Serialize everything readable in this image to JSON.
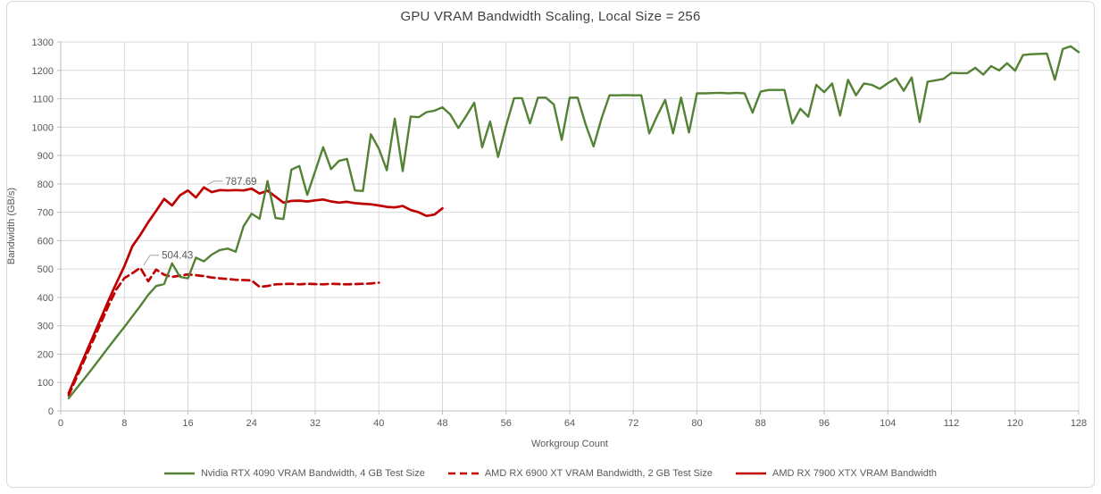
{
  "chart_data": {
    "type": "line",
    "title": "GPU VRAM Bandwidth Scaling, Local Size = 256",
    "xlabel": "Workgroup Count",
    "ylabel": "Bandwidth (GB/s)",
    "xlim": [
      0,
      128
    ],
    "ylim": [
      0,
      1300
    ],
    "x_ticks": [
      0,
      8,
      16,
      24,
      32,
      40,
      48,
      56,
      64,
      72,
      80,
      88,
      96,
      104,
      112,
      120,
      128
    ],
    "y_ticks": [
      0,
      100,
      200,
      300,
      400,
      500,
      600,
      700,
      800,
      900,
      1000,
      1100,
      1200,
      1300
    ],
    "grid": true,
    "legend_position": "bottom",
    "colors": {
      "grid": "#d9d9d9",
      "axis": "#bfbfbf",
      "tick_label": "#595959",
      "title": "#404040",
      "annotation": "#595959",
      "leader_line": "#a6a6a6",
      "nvidia_green": "#548235",
      "amd_red": "#c00000"
    },
    "series": [
      {
        "name": "Nvidia RTX 4090 VRAM Bandwidth, 4 GB Test Size",
        "color": "#548235",
        "style": "solid",
        "x": [
          1,
          2,
          3,
          4,
          5,
          6,
          7,
          8,
          9,
          10,
          11,
          12,
          13,
          14,
          15,
          16,
          17,
          18,
          19,
          20,
          21,
          22,
          23,
          24,
          25,
          26,
          27,
          28,
          29,
          30,
          31,
          32,
          33,
          34,
          35,
          36,
          37,
          38,
          39,
          40,
          41,
          42,
          43,
          44,
          45,
          46,
          47,
          48,
          49,
          50,
          51,
          52,
          53,
          54,
          55,
          56,
          57,
          58,
          59,
          60,
          61,
          62,
          63,
          64,
          65,
          66,
          67,
          68,
          69,
          70,
          71,
          72,
          73,
          74,
          75,
          76,
          77,
          78,
          79,
          80,
          81,
          82,
          83,
          84,
          85,
          86,
          87,
          88,
          89,
          90,
          91,
          92,
          93,
          94,
          95,
          96,
          97,
          98,
          99,
          100,
          101,
          102,
          103,
          104,
          105,
          106,
          107,
          108,
          109,
          110,
          111,
          112,
          113,
          114,
          115,
          116,
          117,
          118,
          119,
          120,
          121,
          122,
          123,
          124,
          125,
          126,
          127,
          128
        ],
        "values": [
          45,
          80,
          115,
          150,
          187,
          224,
          260,
          296,
          333,
          370,
          409,
          440,
          447,
          520,
          472,
          467,
          540,
          527,
          551,
          567,
          572,
          561,
          651,
          695,
          677,
          810,
          680,
          676,
          850,
          863,
          761,
          845,
          929,
          852,
          881,
          888,
          777,
          775,
          975,
          924,
          848,
          1030,
          845,
          1037,
          1035,
          1053,
          1058,
          1070,
          1044,
          997,
          1040,
          1086,
          929,
          1020,
          895,
          1005,
          1102,
          1102,
          1013,
          1104,
          1104,
          1080,
          955,
          1104,
          1104,
          1010,
          932,
          1030,
          1112,
          1112,
          1113,
          1112,
          1112,
          978,
          1040,
          1096,
          978,
          1104,
          981,
          1119,
          1119,
          1120,
          1121,
          1119,
          1121,
          1119,
          1051,
          1125,
          1131,
          1131,
          1131,
          1013,
          1065,
          1037,
          1149,
          1123,
          1154,
          1041,
          1167,
          1112,
          1154,
          1149,
          1135,
          1155,
          1172,
          1128,
          1175,
          1018,
          1160,
          1165,
          1170,
          1191,
          1190,
          1190,
          1209,
          1185,
          1215,
          1200,
          1225,
          1199,
          1254,
          1257,
          1258,
          1259,
          1167,
          1275,
          1285,
          1264
        ]
      },
      {
        "name": "AMD RX 6900 XT VRAM Bandwidth, 2 GB Test Size",
        "color": "#c00000",
        "style": "dashed",
        "x": [
          1,
          2,
          3,
          4,
          5,
          6,
          7,
          8,
          9,
          10,
          11,
          12,
          13,
          14,
          15,
          16,
          17,
          18,
          19,
          20,
          21,
          22,
          23,
          24,
          25,
          26,
          27,
          28,
          29,
          30,
          31,
          32,
          33,
          34,
          35,
          36,
          37,
          38,
          39,
          40
        ],
        "values": [
          55,
          118,
          181,
          244,
          307,
          370,
          428,
          468,
          485,
          504.43,
          457,
          498,
          480,
          472,
          477,
          481,
          478,
          475,
          470,
          467,
          465,
          462,
          461,
          460,
          437,
          440,
          446,
          447,
          448,
          446,
          448,
          447,
          446,
          448,
          447,
          446,
          447,
          448,
          449,
          452
        ]
      },
      {
        "name": "AMD RX 7900 XTX VRAM Bandwidth",
        "color": "#c00000",
        "style": "solid",
        "x": [
          1,
          2,
          3,
          4,
          5,
          6,
          7,
          8,
          9,
          10,
          11,
          12,
          13,
          14,
          15,
          16,
          17,
          18,
          19,
          20,
          21,
          22,
          23,
          24,
          25,
          26,
          27,
          28,
          29,
          30,
          31,
          32,
          33,
          34,
          35,
          36,
          37,
          38,
          39,
          40,
          41,
          42,
          43,
          44,
          45,
          46,
          47,
          48
        ],
        "values": [
          63,
          128,
          193,
          258,
          323,
          388,
          450,
          510,
          580,
          620,
          665,
          705,
          747,
          724,
          760,
          777,
          752,
          787.69,
          771,
          778,
          777,
          778,
          777,
          783,
          766,
          776,
          755,
          734,
          740,
          741,
          738,
          742,
          745,
          738,
          734,
          737,
          732,
          730,
          728,
          724,
          719,
          717,
          722,
          708,
          700,
          687,
          692,
          714
        ]
      }
    ],
    "annotations": [
      {
        "text": "787.69",
        "series_index": 2,
        "x": 18,
        "value": 787.69
      },
      {
        "text": "504.43",
        "series_index": 1,
        "x": 10,
        "value": 504.43
      }
    ]
  }
}
